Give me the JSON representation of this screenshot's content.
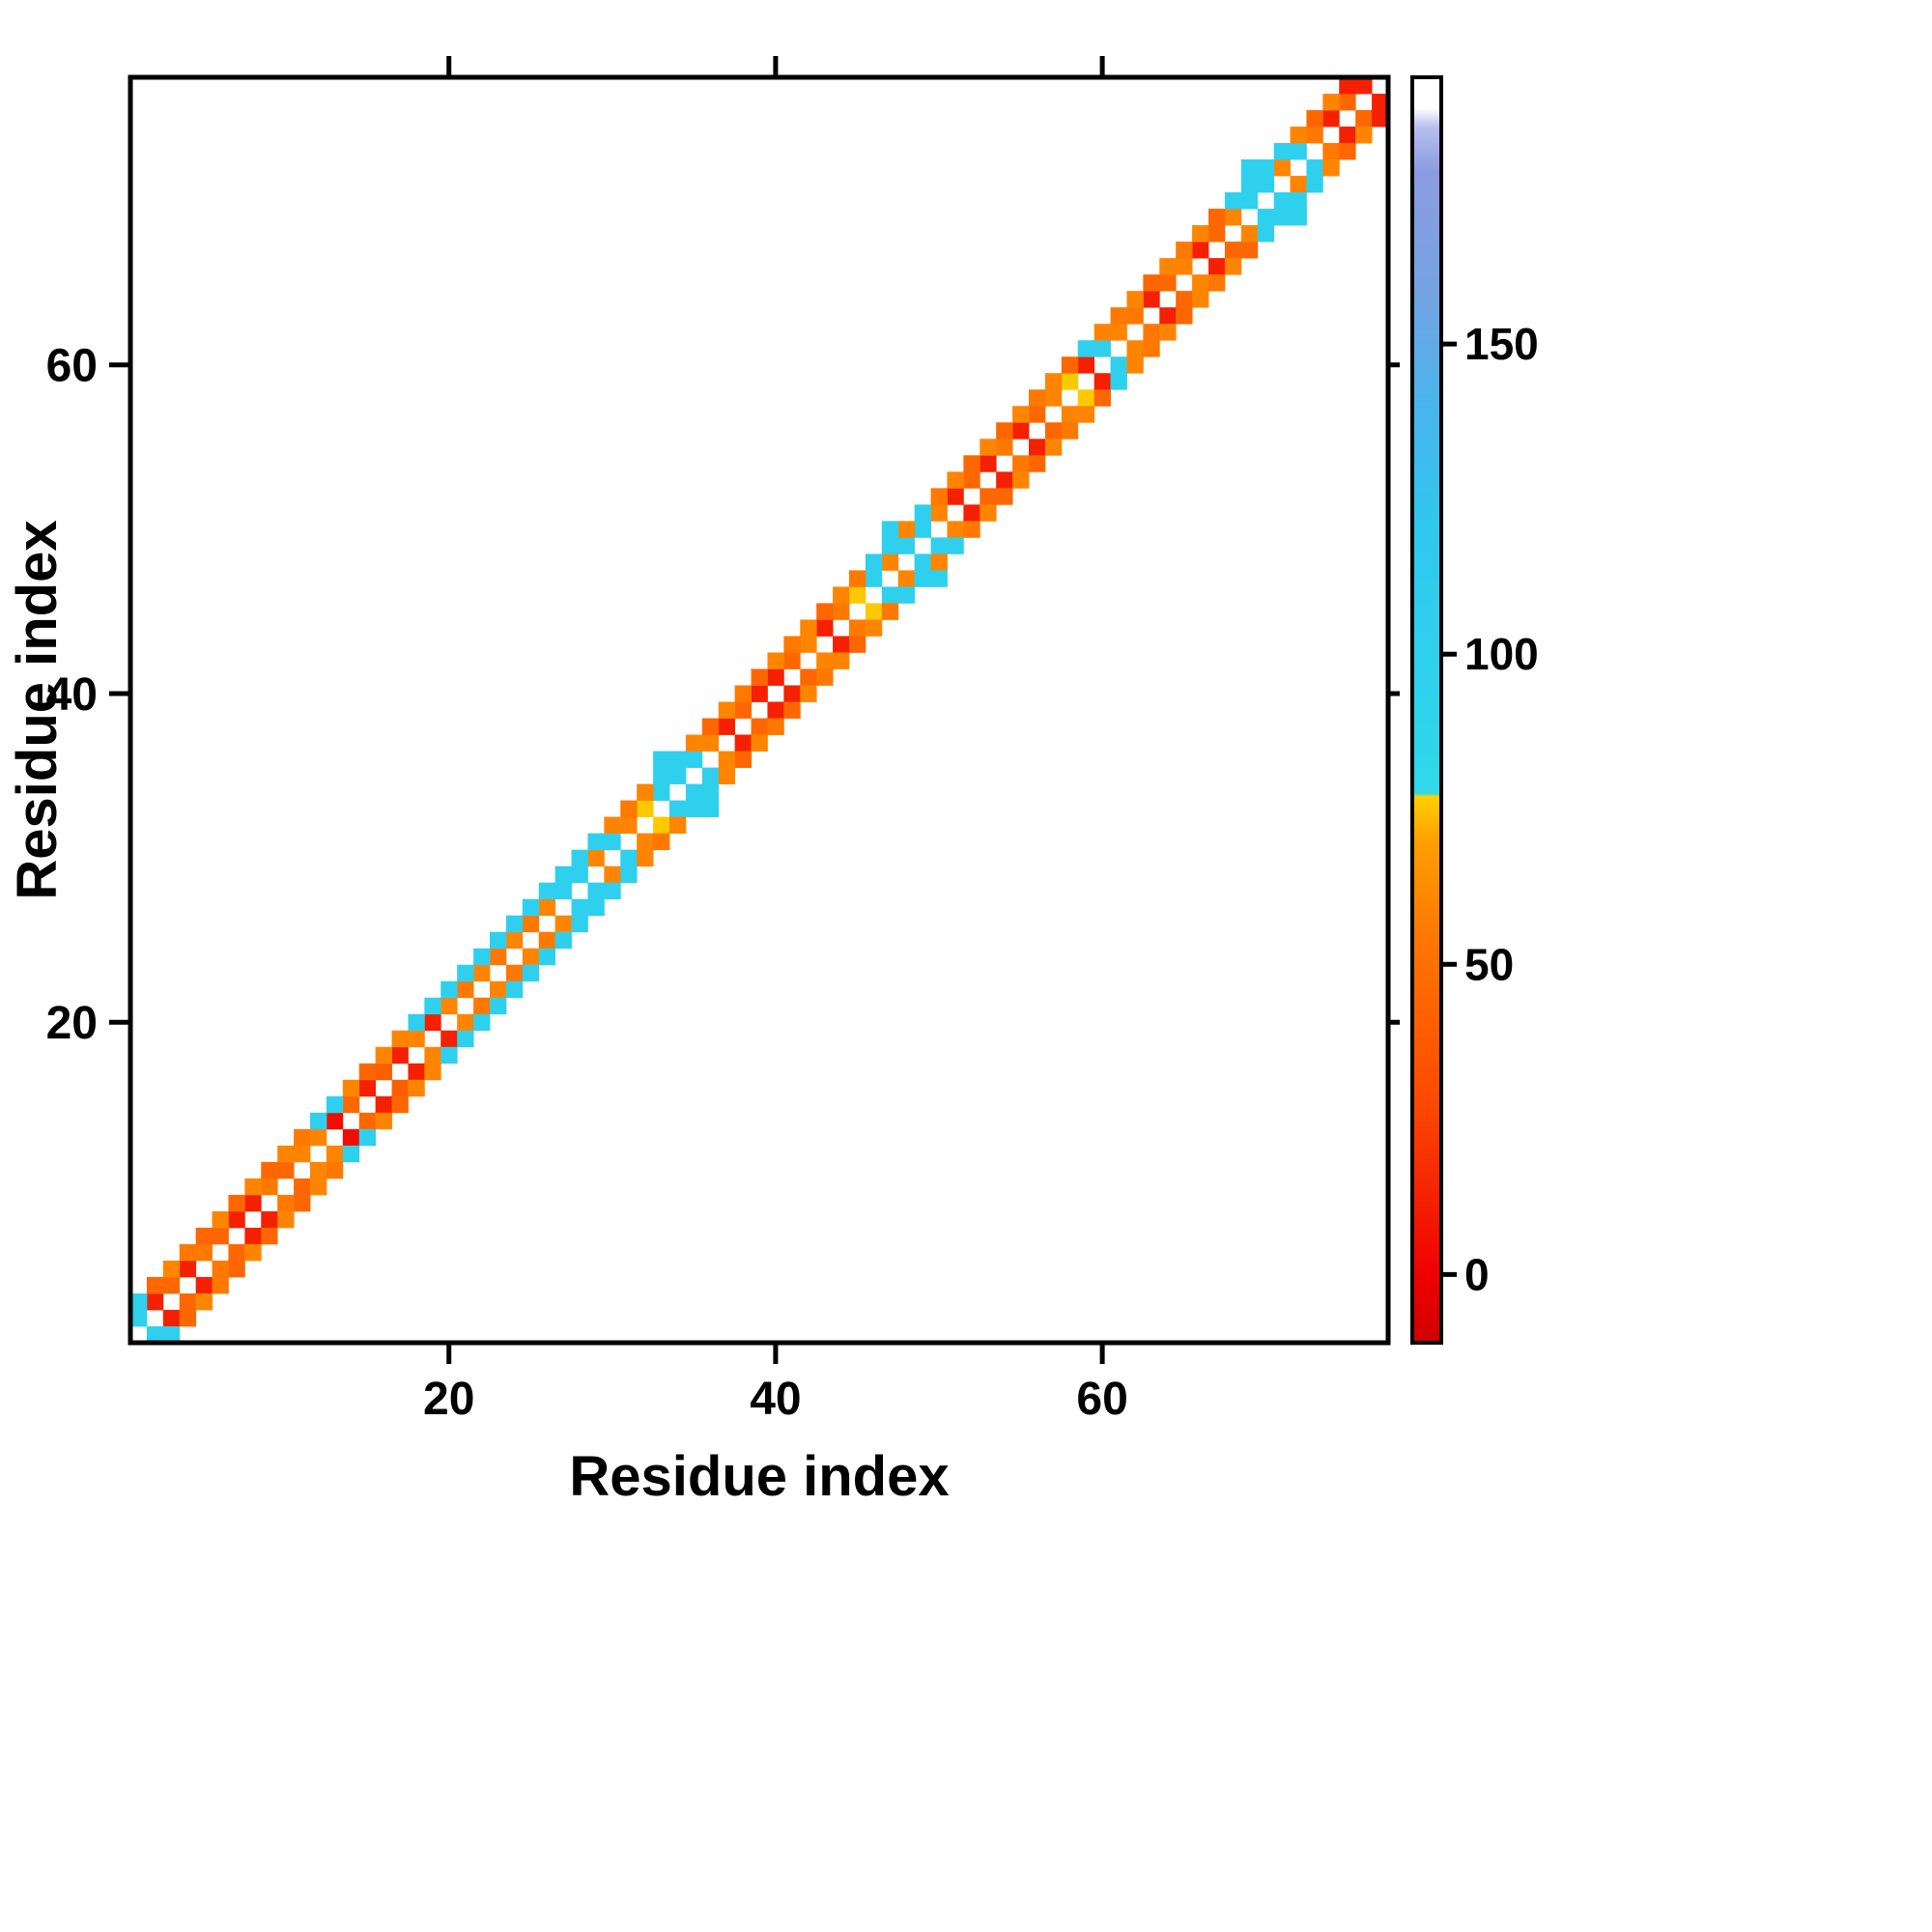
{
  "chart_data": {
    "type": "heatmap",
    "title": "",
    "xlabel": "Residue index",
    "ylabel": "Residue index",
    "x_ticks": [
      20,
      40,
      60
    ],
    "y_ticks": [
      20,
      40,
      60
    ],
    "n_residues": 77,
    "axis_range": [
      1,
      77
    ],
    "grid": false,
    "legend": "colorbar-right",
    "colorbar": {
      "ticks": [
        0,
        50,
        100,
        150
      ],
      "vmin": -11,
      "vmax": 193,
      "stops": [
        {
          "v": -11,
          "c": "#cf0000"
        },
        {
          "v": 0,
          "c": "#f00000"
        },
        {
          "v": 28,
          "c": "#fc4a00"
        },
        {
          "v": 55,
          "c": "#ff7800"
        },
        {
          "v": 70,
          "c": "#ffa000"
        },
        {
          "v": 77,
          "c": "#ffd000"
        },
        {
          "v": 77.6,
          "c": "#2fd9ea"
        },
        {
          "v": 120,
          "c": "#2fc8ef"
        },
        {
          "v": 140,
          "c": "#49b4ec"
        },
        {
          "v": 158,
          "c": "#74a3e2"
        },
        {
          "v": 178,
          "c": "#8d9ce2"
        },
        {
          "v": 185,
          "c": "#b9c0ee"
        },
        {
          "v": 188,
          "c": "#ffffff"
        },
        {
          "v": 193,
          "c": "#ffffff"
        }
      ]
    },
    "matrix": {
      "symmetric": true,
      "diagonal": null,
      "band1": [
        100,
        12,
        45,
        12,
        55,
        45,
        12,
        12,
        55,
        45,
        60,
        60,
        5,
        45,
        12,
        40,
        12,
        60,
        12,
        60,
        55,
        60,
        55,
        60,
        55,
        60,
        100,
        100,
        60,
        100,
        60,
        76,
        100,
        100,
        100,
        60,
        12,
        45,
        12,
        12,
        45,
        60,
        12,
        55,
        76,
        100,
        60,
        100,
        100,
        60,
        12,
        45,
        12,
        55,
        12,
        45,
        60,
        76,
        12,
        100,
        60,
        55,
        12,
        45,
        60,
        12,
        45,
        60,
        100,
        100,
        60,
        100,
        55,
        12,
        45,
        12
      ],
      "band2": [
        100,
        45,
        60,
        55,
        45,
        60,
        45,
        60,
        45,
        60,
        55,
        100,
        100,
        60,
        45,
        60,
        60,
        100,
        100,
        100,
        100,
        100,
        100,
        100,
        100,
        100,
        100,
        100,
        100,
        60,
        55,
        60,
        100,
        100,
        60,
        45,
        60,
        55,
        45,
        60,
        55,
        60,
        45,
        60,
        55,
        100,
        100,
        60,
        100,
        55,
        60,
        45,
        60,
        45,
        60,
        55,
        60,
        45,
        100,
        60,
        55,
        60,
        45,
        60,
        55,
        60,
        45,
        100,
        100,
        100,
        100,
        60,
        45,
        60,
        12
      ],
      "extra_cells": [
        [
          33,
          36,
          100
        ],
        [
          47,
          50,
          100
        ],
        [
          69,
          72,
          100
        ]
      ]
    }
  }
}
